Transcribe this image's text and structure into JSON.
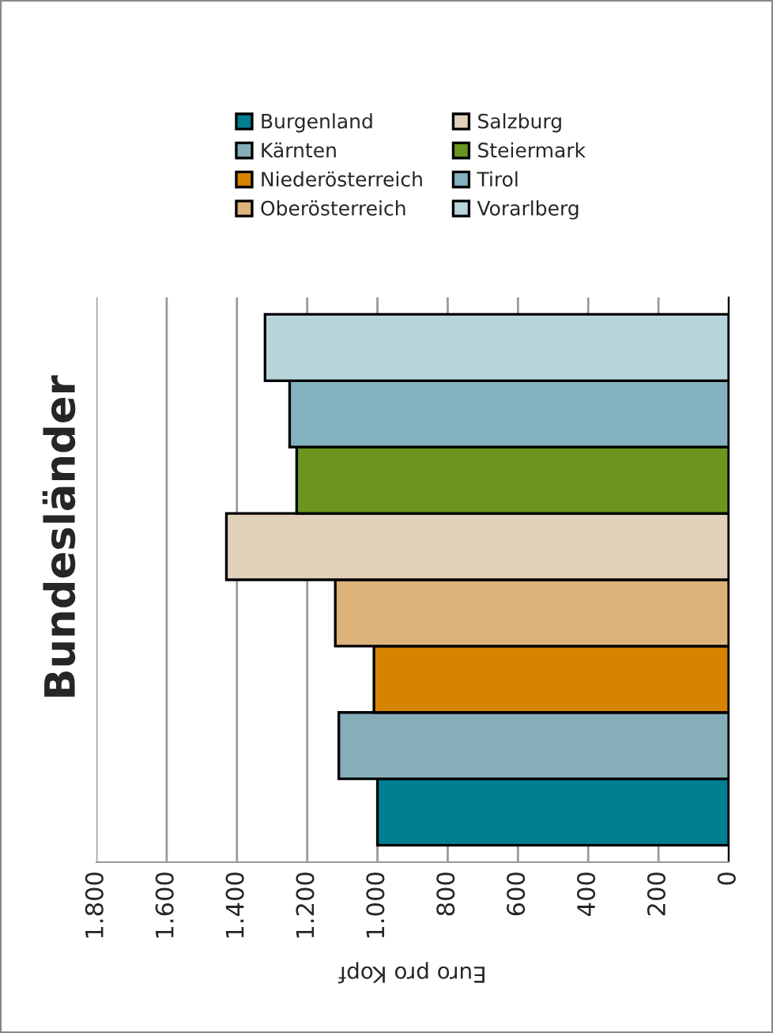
{
  "chart_data": {
    "type": "bar",
    "orientation": "horizontal",
    "title": "Bundesländer",
    "xlabel": "Euro pro Kopf",
    "categories": [
      null
    ],
    "series": [
      {
        "name": "Burgenland",
        "color": "#007f93",
        "values": [
          1000
        ]
      },
      {
        "name": "Kärnten",
        "color": "#86aeb8",
        "values": [
          1110
        ]
      },
      {
        "name": "Niederösterreich",
        "color": "#d68300",
        "values": [
          1010
        ]
      },
      {
        "name": "Oberösterreich",
        "color": "#ddb37b",
        "values": [
          1120
        ]
      },
      {
        "name": "Salzburg",
        "color": "#e1d0ba",
        "values": [
          1430
        ]
      },
      {
        "name": "Steiermark",
        "color": "#6b951f",
        "values": [
          1230
        ]
      },
      {
        "name": "Tirol",
        "color": "#84b1bf",
        "values": [
          1250
        ]
      },
      {
        "name": "Vorarlberg",
        "color": "#b9d5dc",
        "values": [
          1320
        ]
      }
    ],
    "xlim": [
      1800,
      0
    ],
    "xticks": [
      {
        "value": 1800,
        "label": "1.800"
      },
      {
        "value": 1600,
        "label": "1.600"
      },
      {
        "value": 1400,
        "label": "1.400"
      },
      {
        "value": 1200,
        "label": "1.200"
      },
      {
        "value": 1000,
        "label": "1.000"
      },
      800,
      600,
      400,
      200,
      0
    ],
    "grid": "x",
    "legend": "top"
  }
}
